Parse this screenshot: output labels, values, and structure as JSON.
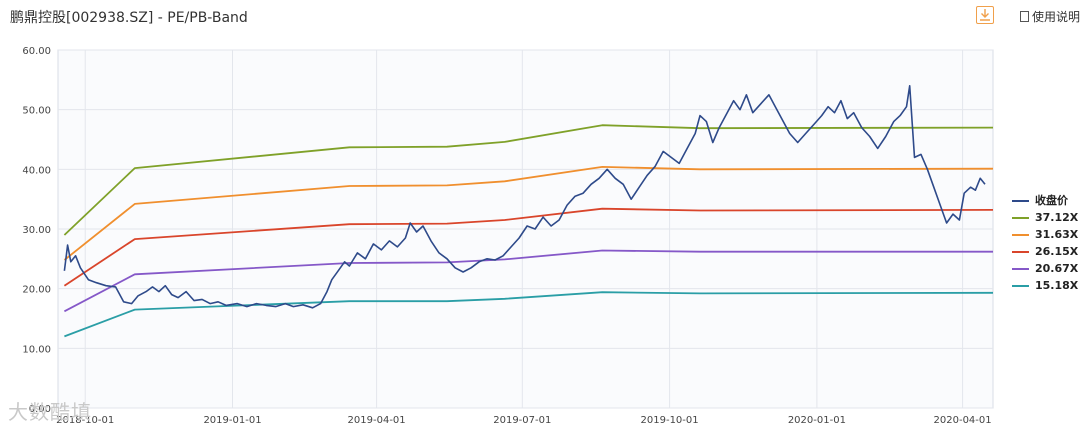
{
  "header": {
    "title": "鹏鼎控股[002938.SZ] - PE/PB-Band",
    "download_icon": "download-icon",
    "manual_label": "使用说明",
    "manual_icon": "document-icon"
  },
  "watermark": "大数酷填",
  "chart_data": {
    "type": "line",
    "xlim": [
      "2018-10-01",
      "2020-04-15"
    ],
    "ylim": [
      0,
      60
    ],
    "y_ticks": [
      "0.00",
      "10.00",
      "20.00",
      "30.00",
      "40.00",
      "50.00",
      "60.00"
    ],
    "x_ticks": [
      "2018-10-01",
      "2019-01-01",
      "2019-04-01",
      "2019-07-01",
      "2019-10-01",
      "2020-01-01",
      "2020-04-01"
    ],
    "grid": true,
    "legend_position": "right",
    "series": [
      {
        "name": "收盘价",
        "color": "#2e4a8a",
        "width": 1.6,
        "points": [
          [
            "2018-09-18",
            23.0
          ],
          [
            "2018-09-20",
            27.3
          ],
          [
            "2018-09-22",
            24.5
          ],
          [
            "2018-09-25",
            25.5
          ],
          [
            "2018-09-28",
            23.5
          ],
          [
            "2018-10-03",
            21.5
          ],
          [
            "2018-10-08",
            21.0
          ],
          [
            "2018-10-14",
            20.5
          ],
          [
            "2018-10-20",
            20.3
          ],
          [
            "2018-10-25",
            17.8
          ],
          [
            "2018-10-30",
            17.5
          ],
          [
            "2018-11-03",
            18.8
          ],
          [
            "2018-11-08",
            19.5
          ],
          [
            "2018-11-12",
            20.3
          ],
          [
            "2018-11-16",
            19.5
          ],
          [
            "2018-11-20",
            20.5
          ],
          [
            "2018-11-24",
            19.0
          ],
          [
            "2018-11-28",
            18.5
          ],
          [
            "2018-12-03",
            19.5
          ],
          [
            "2018-12-08",
            18.0
          ],
          [
            "2018-12-13",
            18.2
          ],
          [
            "2018-12-18",
            17.5
          ],
          [
            "2018-12-23",
            17.8
          ],
          [
            "2018-12-28",
            17.2
          ],
          [
            "2019-01-04",
            17.5
          ],
          [
            "2019-01-10",
            17.0
          ],
          [
            "2019-01-16",
            17.5
          ],
          [
            "2019-01-22",
            17.2
          ],
          [
            "2019-01-28",
            17.0
          ],
          [
            "2019-02-03",
            17.5
          ],
          [
            "2019-02-08",
            17.0
          ],
          [
            "2019-02-14",
            17.3
          ],
          [
            "2019-02-20",
            16.8
          ],
          [
            "2019-02-25",
            17.5
          ],
          [
            "2019-03-01",
            19.5
          ],
          [
            "2019-03-04",
            21.5
          ],
          [
            "2019-03-08",
            23.0
          ],
          [
            "2019-03-12",
            24.5
          ],
          [
            "2019-03-15",
            23.8
          ],
          [
            "2019-03-20",
            26.0
          ],
          [
            "2019-03-25",
            25.0
          ],
          [
            "2019-03-30",
            27.5
          ],
          [
            "2019-04-04",
            26.5
          ],
          [
            "2019-04-09",
            28.0
          ],
          [
            "2019-04-14",
            27.0
          ],
          [
            "2019-04-19",
            28.5
          ],
          [
            "2019-04-22",
            31.0
          ],
          [
            "2019-04-26",
            29.5
          ],
          [
            "2019-04-30",
            30.5
          ],
          [
            "2019-05-05",
            28.0
          ],
          [
            "2019-05-10",
            26.0
          ],
          [
            "2019-05-15",
            25.0
          ],
          [
            "2019-05-20",
            23.5
          ],
          [
            "2019-05-25",
            22.8
          ],
          [
            "2019-05-30",
            23.5
          ],
          [
            "2019-06-04",
            24.5
          ],
          [
            "2019-06-09",
            25.0
          ],
          [
            "2019-06-14",
            24.8
          ],
          [
            "2019-06-19",
            25.5
          ],
          [
            "2019-06-24",
            27.0
          ],
          [
            "2019-06-29",
            28.5
          ],
          [
            "2019-07-04",
            30.5
          ],
          [
            "2019-07-09",
            30.0
          ],
          [
            "2019-07-14",
            32.0
          ],
          [
            "2019-07-19",
            30.5
          ],
          [
            "2019-07-24",
            31.5
          ],
          [
            "2019-07-29",
            34.0
          ],
          [
            "2019-08-03",
            35.5
          ],
          [
            "2019-08-08",
            36.0
          ],
          [
            "2019-08-13",
            37.5
          ],
          [
            "2019-08-18",
            38.5
          ],
          [
            "2019-08-23",
            40.0
          ],
          [
            "2019-08-28",
            38.5
          ],
          [
            "2019-09-02",
            37.5
          ],
          [
            "2019-09-07",
            35.0
          ],
          [
            "2019-09-12",
            37.0
          ],
          [
            "2019-09-17",
            39.0
          ],
          [
            "2019-09-22",
            40.5
          ],
          [
            "2019-09-27",
            43.0
          ],
          [
            "2019-10-02",
            42.0
          ],
          [
            "2019-10-07",
            41.0
          ],
          [
            "2019-10-12",
            43.5
          ],
          [
            "2019-10-17",
            46.0
          ],
          [
            "2019-10-20",
            49.0
          ],
          [
            "2019-10-24",
            48.0
          ],
          [
            "2019-10-28",
            44.5
          ],
          [
            "2019-11-01",
            47.0
          ],
          [
            "2019-11-06",
            49.5
          ],
          [
            "2019-11-10",
            51.5
          ],
          [
            "2019-11-14",
            50.0
          ],
          [
            "2019-11-18",
            52.5
          ],
          [
            "2019-11-22",
            49.5
          ],
          [
            "2019-11-27",
            51.0
          ],
          [
            "2019-12-02",
            52.5
          ],
          [
            "2019-12-06",
            50.5
          ],
          [
            "2019-12-10",
            48.5
          ],
          [
            "2019-12-15",
            46.0
          ],
          [
            "2019-12-20",
            44.5
          ],
          [
            "2019-12-25",
            46.0
          ],
          [
            "2019-12-30",
            47.5
          ],
          [
            "2020-01-04",
            49.0
          ],
          [
            "2020-01-08",
            50.5
          ],
          [
            "2020-01-12",
            49.5
          ],
          [
            "2020-01-16",
            51.5
          ],
          [
            "2020-01-20",
            48.5
          ],
          [
            "2020-01-24",
            49.5
          ],
          [
            "2020-01-29",
            47.0
          ],
          [
            "2020-02-03",
            45.5
          ],
          [
            "2020-02-08",
            43.5
          ],
          [
            "2020-02-13",
            45.5
          ],
          [
            "2020-02-18",
            48.0
          ],
          [
            "2020-02-22",
            49.0
          ],
          [
            "2020-02-26",
            50.5
          ],
          [
            "2020-02-28",
            54.0
          ],
          [
            "2020-03-02",
            42.0
          ],
          [
            "2020-03-06",
            42.5
          ],
          [
            "2020-03-10",
            40.0
          ],
          [
            "2020-03-14",
            37.0
          ],
          [
            "2020-03-18",
            34.0
          ],
          [
            "2020-03-22",
            31.0
          ],
          [
            "2020-03-26",
            32.5
          ],
          [
            "2020-03-30",
            31.5
          ],
          [
            "2020-04-02",
            36.0
          ],
          [
            "2020-04-06",
            37.0
          ],
          [
            "2020-04-09",
            36.5
          ],
          [
            "2020-04-12",
            38.5
          ],
          [
            "2020-04-15",
            37.5
          ]
        ]
      },
      {
        "name": "37.12X",
        "color": "#7fa129",
        "width": 1.8,
        "points": [
          [
            "2018-09-18",
            29.0
          ],
          [
            "2018-11-01",
            40.2
          ],
          [
            "2019-03-15",
            43.7
          ],
          [
            "2019-05-15",
            43.8
          ],
          [
            "2019-06-20",
            44.6
          ],
          [
            "2019-08-20",
            47.4
          ],
          [
            "2019-10-20",
            46.9
          ],
          [
            "2020-04-20",
            47.0
          ]
        ]
      },
      {
        "name": "31.63X",
        "color": "#f08f2e",
        "width": 1.8,
        "points": [
          [
            "2018-09-18",
            24.8
          ],
          [
            "2018-11-01",
            34.2
          ],
          [
            "2019-03-15",
            37.2
          ],
          [
            "2019-05-15",
            37.3
          ],
          [
            "2019-06-20",
            38.0
          ],
          [
            "2019-08-20",
            40.4
          ],
          [
            "2019-10-20",
            40.0
          ],
          [
            "2020-04-20",
            40.1
          ]
        ]
      },
      {
        "name": "26.15X",
        "color": "#d9452b",
        "width": 1.8,
        "points": [
          [
            "2018-09-18",
            20.5
          ],
          [
            "2018-11-01",
            28.3
          ],
          [
            "2019-03-15",
            30.8
          ],
          [
            "2019-05-15",
            30.9
          ],
          [
            "2019-06-20",
            31.5
          ],
          [
            "2019-08-20",
            33.4
          ],
          [
            "2019-10-20",
            33.1
          ],
          [
            "2020-04-20",
            33.2
          ]
        ]
      },
      {
        "name": "20.67X",
        "color": "#8558c8",
        "width": 1.8,
        "points": [
          [
            "2018-09-18",
            16.2
          ],
          [
            "2018-11-01",
            22.4
          ],
          [
            "2019-03-15",
            24.3
          ],
          [
            "2019-05-15",
            24.4
          ],
          [
            "2019-06-20",
            24.9
          ],
          [
            "2019-08-20",
            26.4
          ],
          [
            "2019-10-20",
            26.2
          ],
          [
            "2020-04-20",
            26.2
          ]
        ]
      },
      {
        "name": "15.18X",
        "color": "#2a9ea6",
        "width": 1.8,
        "points": [
          [
            "2018-09-18",
            12.0
          ],
          [
            "2018-11-01",
            16.5
          ],
          [
            "2019-03-15",
            17.9
          ],
          [
            "2019-05-15",
            17.9
          ],
          [
            "2019-06-20",
            18.3
          ],
          [
            "2019-08-20",
            19.4
          ],
          [
            "2019-10-20",
            19.2
          ],
          [
            "2020-04-20",
            19.3
          ]
        ]
      }
    ]
  }
}
